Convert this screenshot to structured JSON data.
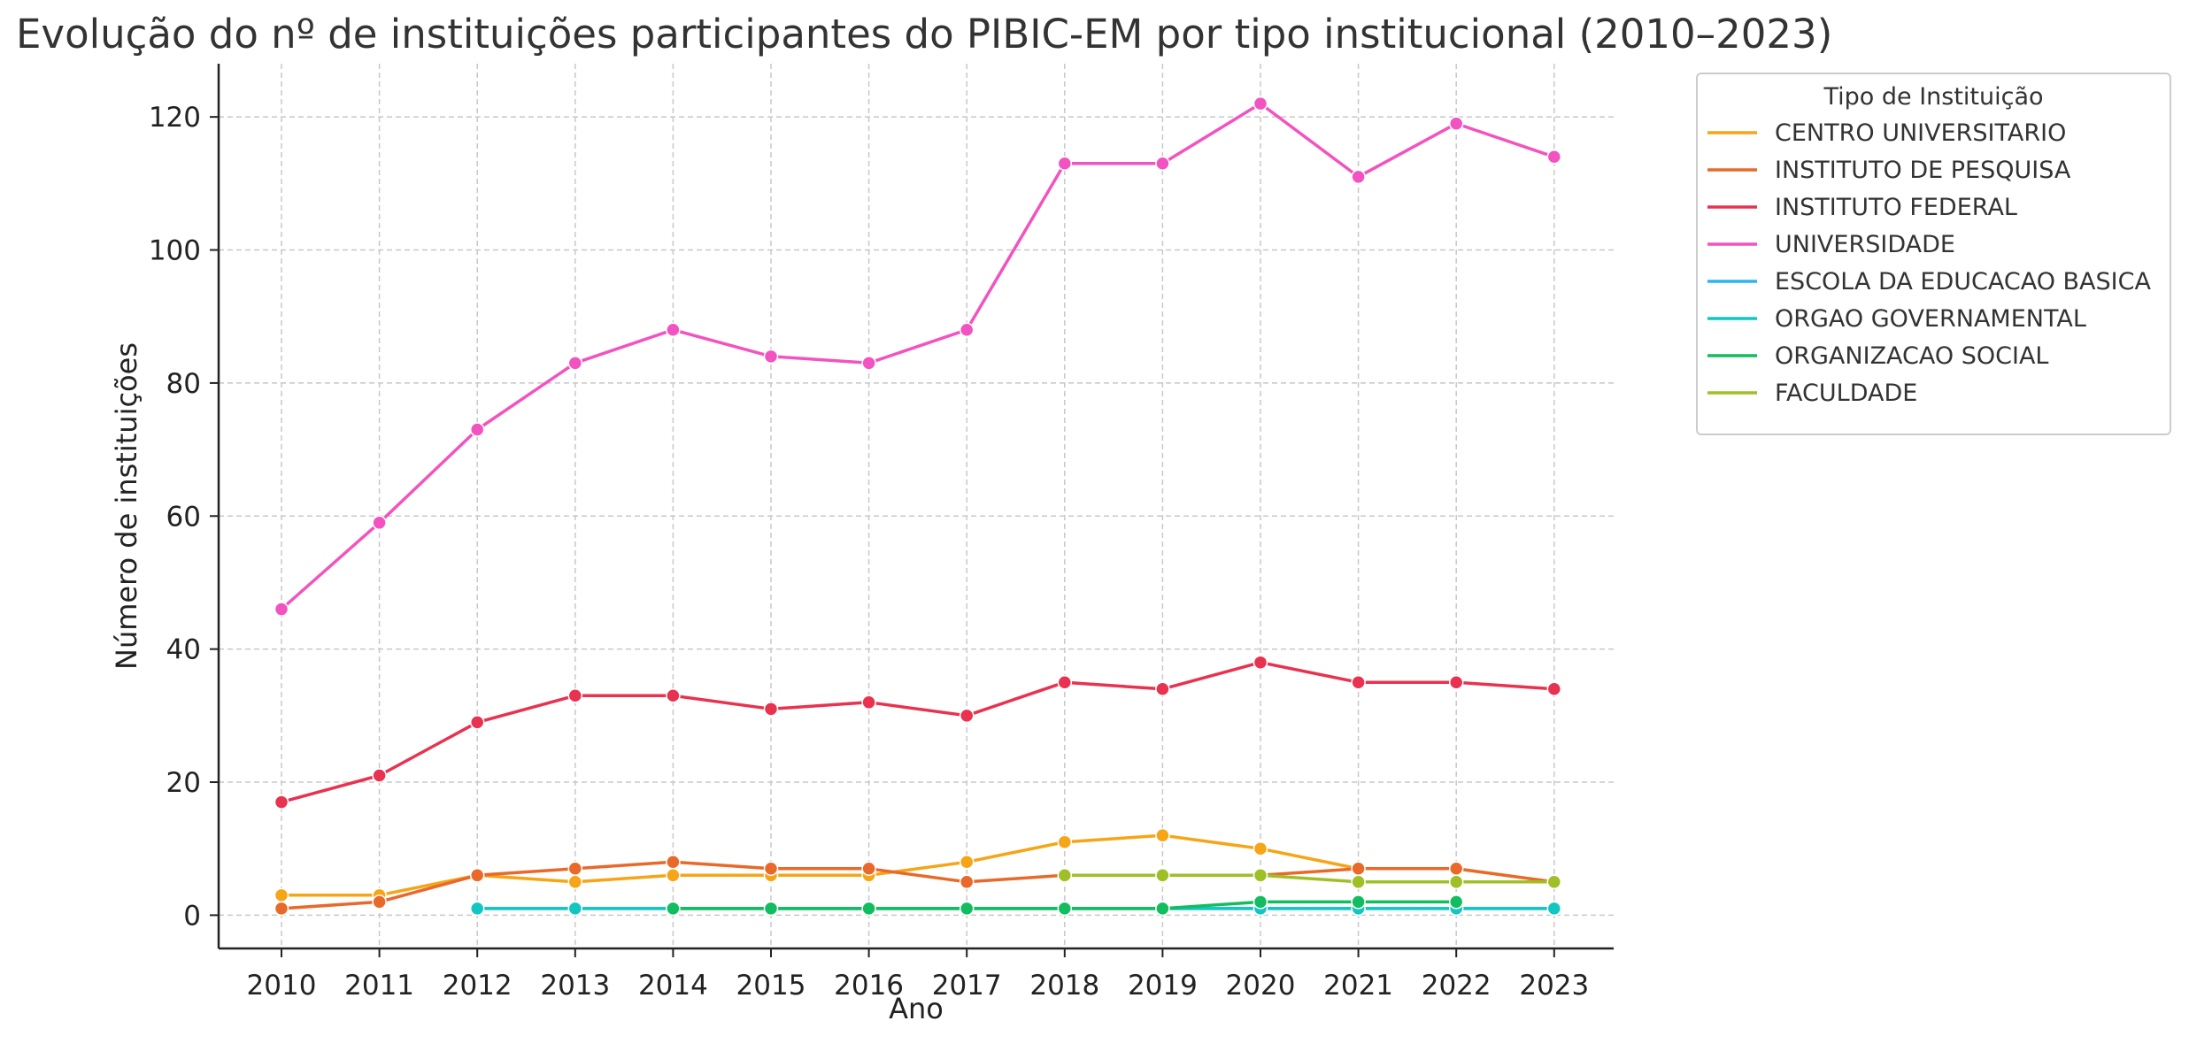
{
  "chart_data": {
    "type": "line",
    "title": "Evolução do nº de instituições participantes do PIBIC-EM por tipo institucional (2010–2023)",
    "xlabel": "Ano",
    "ylabel": "Número de instituições",
    "x": [
      "2010",
      "2011",
      "2012",
      "2013",
      "2014",
      "2015",
      "2016",
      "2017",
      "2018",
      "2019",
      "2020",
      "2021",
      "2022",
      "2023"
    ],
    "y_ticks": [
      "0",
      "20",
      "40",
      "60",
      "80",
      "100",
      "120"
    ],
    "ylim": [
      -5,
      128
    ],
    "grid": true,
    "legend": {
      "title": "Tipo de Instituição",
      "placement": "outside-top-right"
    },
    "series": [
      {
        "name": "CENTRO UNIVERSITARIO",
        "color": "#F5A515",
        "values": [
          3,
          3,
          6,
          5,
          6,
          6,
          6,
          8,
          11,
          12,
          10,
          7,
          7,
          5
        ]
      },
      {
        "name": "INSTITUTO DE PESQUISA",
        "color": "#E8692A",
        "values": [
          1,
          2,
          6,
          7,
          8,
          7,
          7,
          5,
          6,
          6,
          6,
          7,
          7,
          5
        ]
      },
      {
        "name": "INSTITUTO FEDERAL",
        "color": "#E8324F",
        "values": [
          17,
          21,
          29,
          33,
          33,
          31,
          32,
          30,
          35,
          34,
          38,
          35,
          35,
          34
        ]
      },
      {
        "name": "UNIVERSIDADE",
        "color": "#F253C0",
        "values": [
          46,
          59,
          73,
          83,
          88,
          84,
          83,
          88,
          113,
          113,
          122,
          111,
          119,
          114
        ]
      },
      {
        "name": "ESCOLA DA EDUCACAO BASICA",
        "color": "#2AB5F0",
        "values": [
          null,
          null,
          1,
          1,
          1,
          1,
          1,
          1,
          1,
          1,
          1,
          1,
          1,
          1
        ]
      },
      {
        "name": "ORGAO GOVERNAMENTAL",
        "color": "#12C6C2",
        "values": [
          null,
          null,
          1,
          1,
          1,
          1,
          1,
          1,
          1,
          1,
          1,
          1,
          1,
          1
        ]
      },
      {
        "name": "ORGANIZACAO SOCIAL",
        "color": "#12BD5F",
        "values": [
          null,
          null,
          null,
          null,
          1,
          1,
          1,
          1,
          1,
          1,
          2,
          2,
          2,
          null
        ]
      },
      {
        "name": "FACULDADE",
        "color": "#9EC026",
        "values": [
          null,
          null,
          null,
          null,
          null,
          null,
          null,
          null,
          6,
          6,
          6,
          5,
          5,
          5
        ]
      }
    ]
  }
}
